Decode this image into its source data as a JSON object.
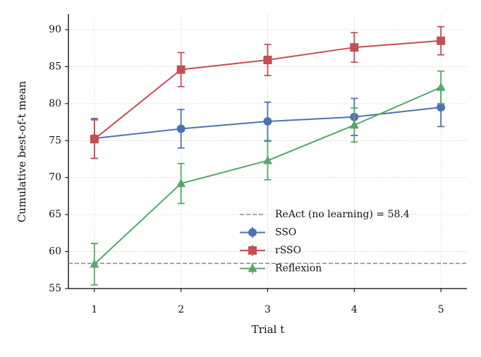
{
  "chart_data": {
    "type": "line",
    "x_label": "Trial t",
    "y_label": "Cumulative best-of-t mean",
    "x": [
      1,
      2,
      3,
      4,
      5
    ],
    "series": [
      {
        "name": "SSO",
        "color": "#4c72b0",
        "marker": "circle",
        "values": [
          75.3,
          76.6,
          77.6,
          78.2,
          79.5
        ],
        "errors": [
          2.7,
          2.6,
          2.6,
          2.5,
          2.6
        ]
      },
      {
        "name": "rSSO",
        "color": "#c44e52",
        "marker": "square",
        "values": [
          75.2,
          84.6,
          85.9,
          87.6,
          88.5
        ],
        "errors": [
          2.6,
          2.3,
          2.1,
          2.0,
          1.9
        ]
      },
      {
        "name": "Reflexion",
        "color": "#55a868",
        "marker": "triangle",
        "values": [
          58.3,
          69.2,
          72.3,
          77.1,
          82.2
        ],
        "errors": [
          2.8,
          2.7,
          2.6,
          2.3,
          2.2
        ]
      }
    ],
    "reference_line": {
      "name": "ReAct (no learning) = 58.4",
      "value": 58.4,
      "color": "#888888"
    },
    "xlim": [
      0.7,
      5.3
    ],
    "ylim": [
      55,
      92.1
    ],
    "xticks": [
      1,
      2,
      3,
      4,
      5
    ],
    "yticks": [
      55,
      60,
      65,
      70,
      75,
      80,
      85,
      90
    ],
    "grid": true,
    "legend": "lower right"
  }
}
